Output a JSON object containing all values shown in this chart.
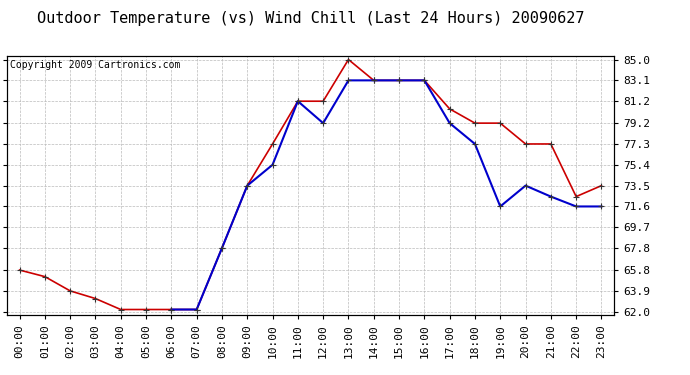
{
  "title": "Outdoor Temperature (vs) Wind Chill (Last 24 Hours) 20090627",
  "copyright": "Copyright 2009 Cartronics.com",
  "temp_x": [
    0,
    1,
    2,
    3,
    4,
    5,
    6,
    7,
    8,
    9,
    10,
    11,
    12,
    13,
    14,
    15,
    16,
    17,
    18,
    19,
    20,
    21,
    22,
    23
  ],
  "temp_y": [
    65.8,
    65.2,
    63.9,
    63.2,
    62.2,
    62.2,
    62.2,
    62.2,
    67.8,
    73.5,
    77.3,
    81.2,
    81.2,
    85.0,
    83.1,
    83.1,
    83.1,
    80.5,
    79.2,
    79.2,
    77.3,
    77.3,
    72.5,
    73.5
  ],
  "wc_x": [
    6,
    7,
    8,
    9,
    10,
    11,
    12,
    13,
    14,
    15,
    16,
    17,
    18,
    19,
    20,
    21,
    22,
    23
  ],
  "wc_y": [
    62.2,
    62.2,
    67.8,
    73.5,
    75.4,
    81.2,
    79.2,
    83.1,
    83.1,
    83.1,
    83.1,
    79.2,
    77.3,
    71.6,
    73.5,
    72.5,
    71.6,
    71.6
  ],
  "temp_color": "#cc0000",
  "wc_color": "#0000cc",
  "bg_color": "#ffffff",
  "grid_color": "#bbbbbb",
  "yticks": [
    62.0,
    63.9,
    65.8,
    67.8,
    69.7,
    71.6,
    73.5,
    75.4,
    77.3,
    79.2,
    81.2,
    83.1,
    85.0
  ],
  "ytick_labels": [
    "62.0",
    "63.9",
    "65.8",
    "67.8",
    "69.7",
    "71.6",
    "73.5",
    "75.4",
    "77.3",
    "79.2",
    "81.2",
    "83.1",
    "85.0"
  ],
  "ymin": 62.0,
  "ymax": 85.0,
  "marker": "+",
  "title_fontsize": 11,
  "copyright_fontsize": 7,
  "tick_fontsize": 8
}
